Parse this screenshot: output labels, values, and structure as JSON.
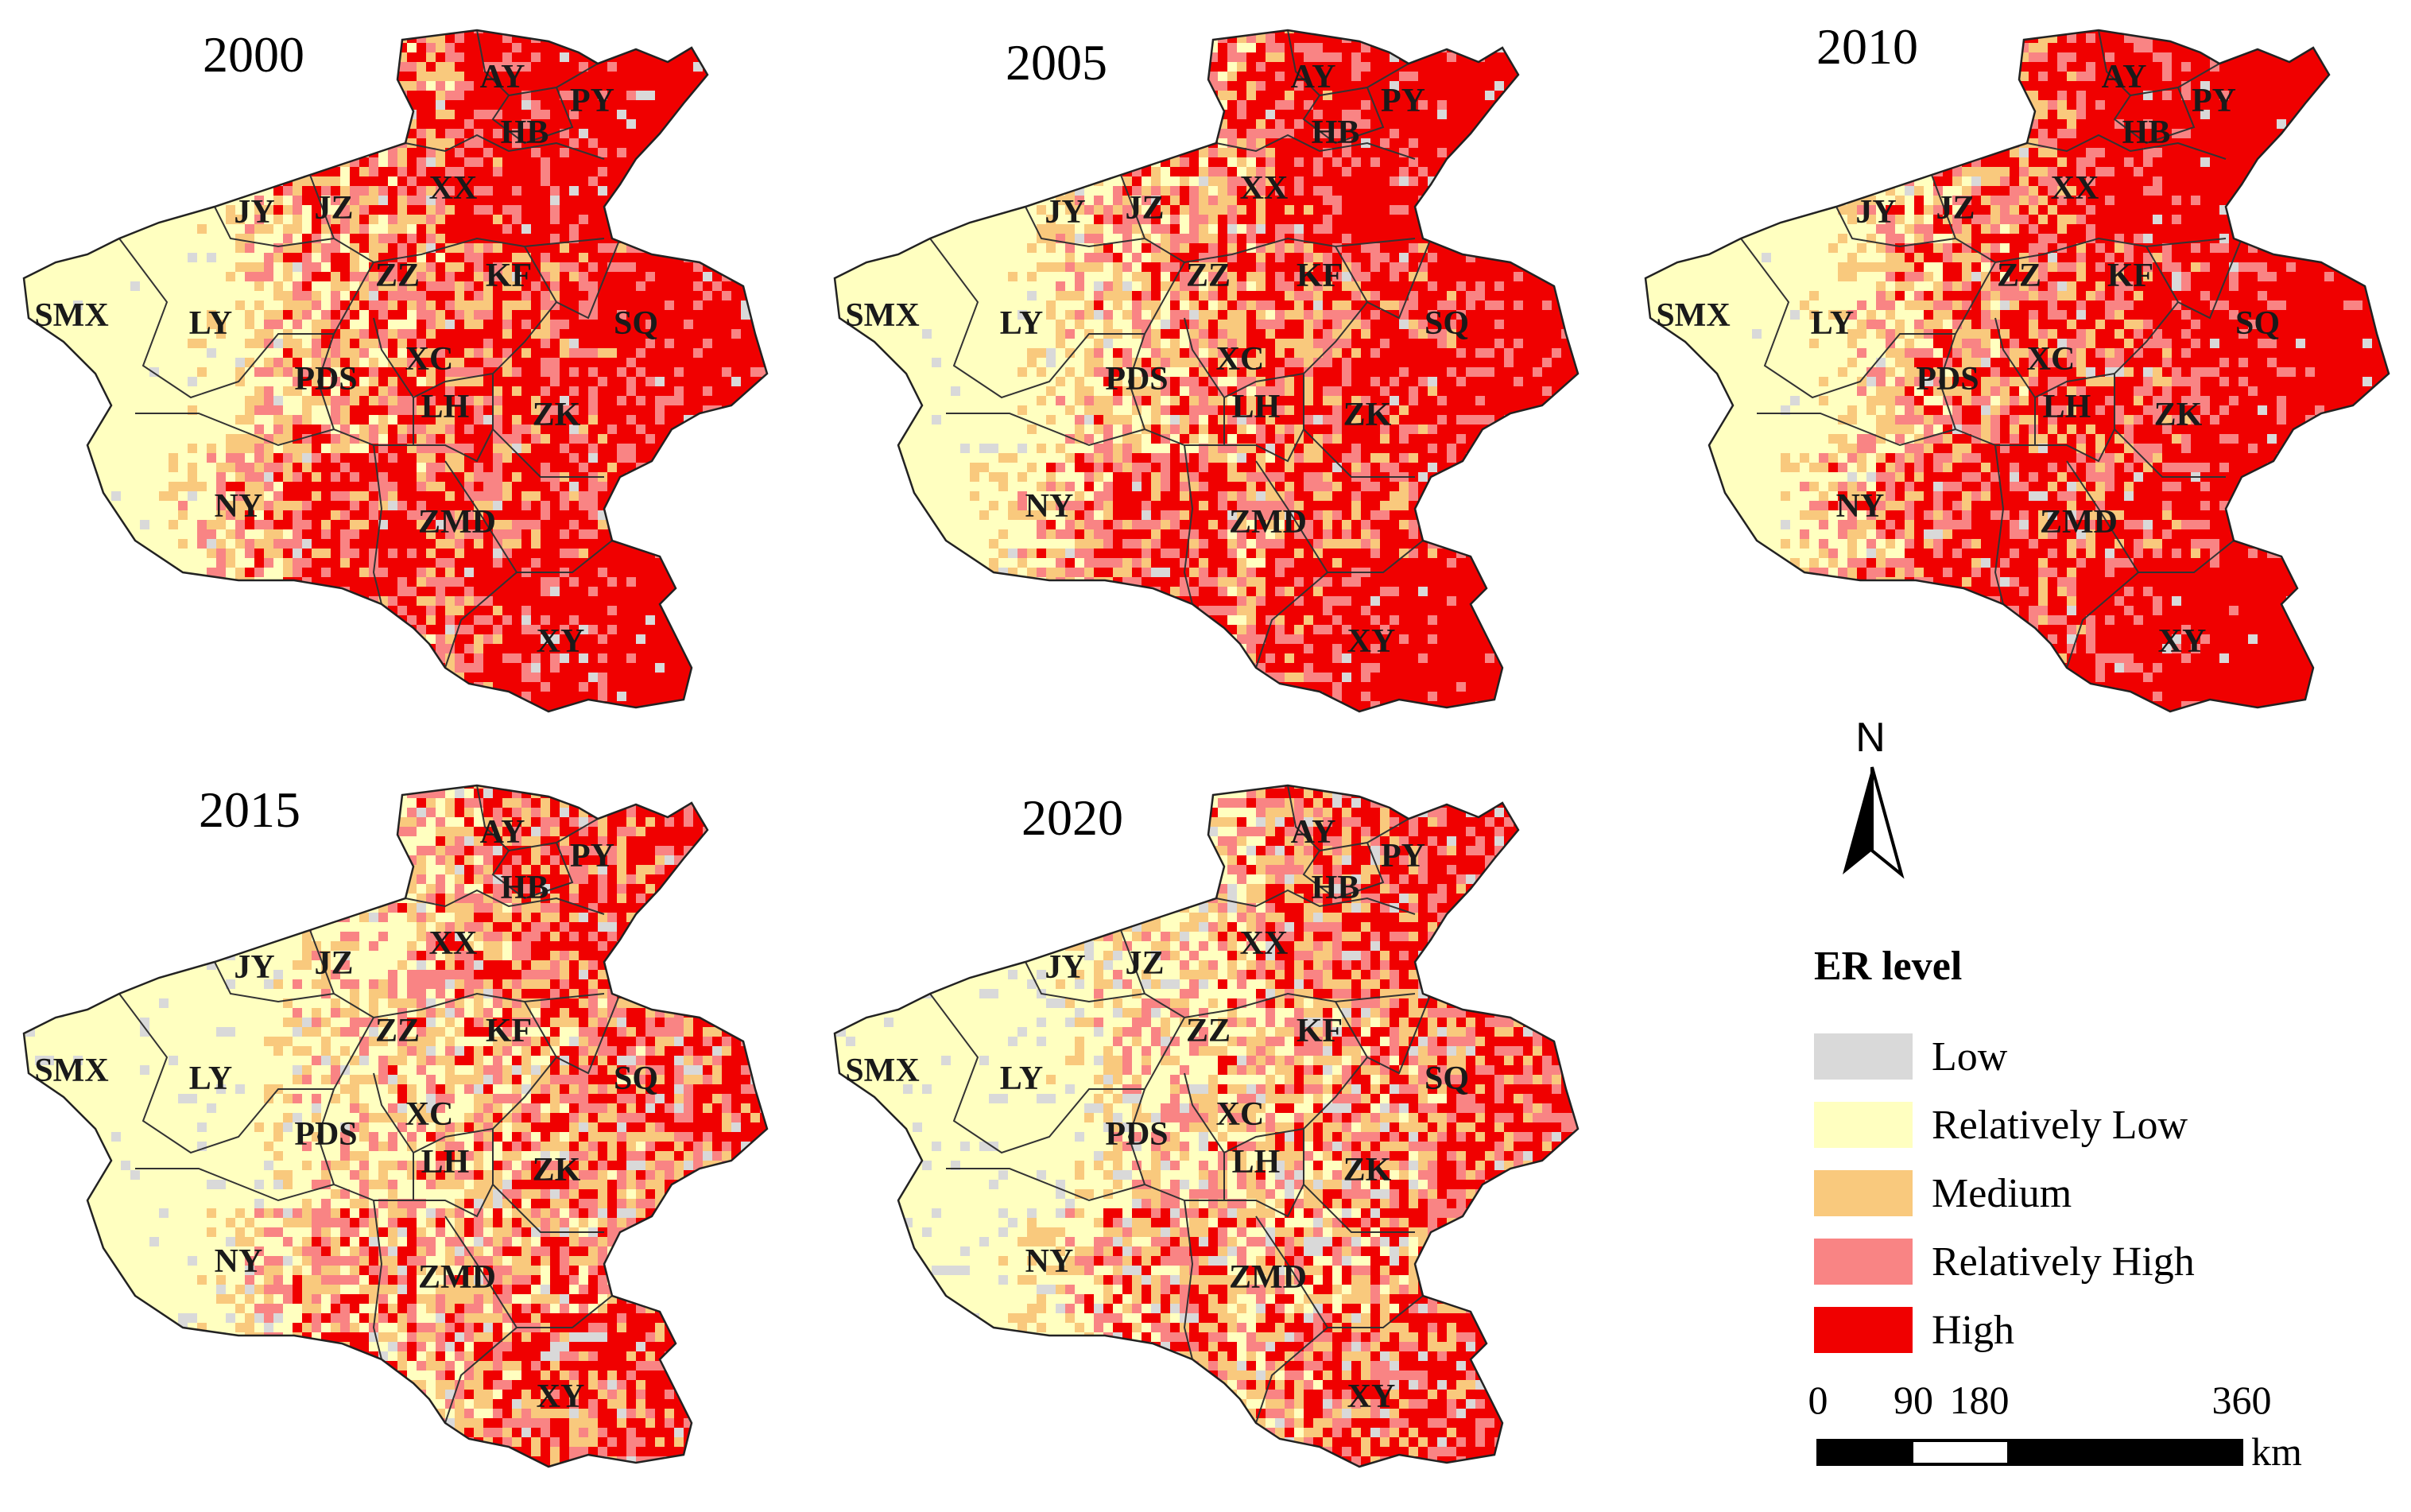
{
  "figure": {
    "panels": [
      {
        "year": "2000",
        "high_share": 0.58,
        "low_share": 0.02
      },
      {
        "year": "2005",
        "high_share": 0.56,
        "low_share": 0.02
      },
      {
        "year": "2010",
        "high_share": 0.62,
        "low_share": 0.02
      },
      {
        "year": "2015",
        "high_share": 0.4,
        "low_share": 0.05
      },
      {
        "year": "2020",
        "high_share": 0.42,
        "low_share": 0.07
      }
    ],
    "regions": [
      "AY",
      "PY",
      "HB",
      "XX",
      "JY",
      "JZ",
      "ZZ",
      "KF",
      "SMX",
      "LY",
      "SQ",
      "PDS",
      "XC",
      "LH",
      "ZK",
      "NY",
      "ZMD",
      "XY"
    ]
  },
  "north_arrow": {
    "label": "N",
    "icon": "north-arrow-icon"
  },
  "legend": {
    "title": "ER level",
    "items": [
      {
        "label": "Low",
        "color": "#d9d9d9"
      },
      {
        "label": "Relatively Low",
        "color": "#ffffc0"
      },
      {
        "label": "Medium",
        "color": "#f9c97d"
      },
      {
        "label": "Relatively High",
        "color": "#f98484"
      },
      {
        "label": "High",
        "color": "#f00000"
      }
    ]
  },
  "scale_bar": {
    "ticks": [
      "0",
      "90",
      "180",
      "360"
    ],
    "unit": "km"
  }
}
